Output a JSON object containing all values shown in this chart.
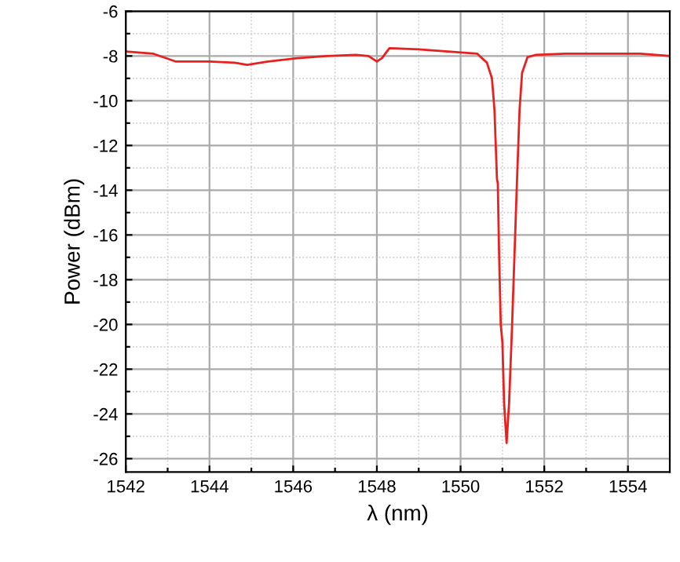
{
  "chart_data": {
    "type": "line",
    "xlabel": "λ (nm)",
    "ylabel": "Power (dBm)",
    "xlim": [
      1542,
      1555
    ],
    "ylim": [
      -26.6,
      -6
    ],
    "xticks": [
      1542,
      {
        "value": 1543,
        "label": null
      },
      1544,
      {
        "value": 1545,
        "label": null
      },
      1546,
      {
        "value": 1547,
        "label": null
      },
      1548,
      {
        "value": 1549,
        "label": null
      },
      1550,
      {
        "value": 1551,
        "label": null
      },
      1552,
      {
        "value": 1553,
        "label": null
      },
      1554
    ],
    "yticks": [
      -26,
      {
        "value": -25,
        "label": null
      },
      -24,
      {
        "value": -23,
        "label": null
      },
      -22,
      {
        "value": -21,
        "label": null
      },
      -20,
      {
        "value": -19,
        "label": null
      },
      -18,
      {
        "value": -17,
        "label": null
      },
      -16,
      {
        "value": -15,
        "label": null
      },
      -14,
      {
        "value": -13,
        "label": null
      },
      -12,
      {
        "value": -11,
        "label": null
      },
      -10,
      {
        "value": -9,
        "label": null
      },
      -8,
      {
        "value": -7,
        "label": null
      },
      -6
    ],
    "grid": true,
    "marker": "none",
    "line_style": "solid",
    "series": [
      {
        "color": "#e8201e",
        "x": [
          1542,
          1542.66,
          1543.2,
          1544,
          1544.6,
          1544.9,
          1545.4,
          1546.1,
          1546.8,
          1547.5,
          1547.8,
          1548,
          1548.12,
          1548.3,
          1549,
          1549.7,
          1550.4,
          1550.63,
          1550.75,
          1550.81,
          1550.87,
          1550.89,
          1550.92,
          1550.96,
          1551.0,
          1551.04,
          1551.1,
          1551.16,
          1551.23,
          1551.29,
          1551.35,
          1551.41,
          1551.47,
          1551.6,
          1551.8,
          1552.5,
          1553.5,
          1554.3,
          1555
        ],
        "values": [
          -7.8,
          -7.9,
          -8.25,
          -8.25,
          -8.3,
          -8.4,
          -8.25,
          -8.1,
          -8.0,
          -7.95,
          -8.0,
          -8.25,
          -8.1,
          -7.65,
          -7.7,
          -7.8,
          -7.9,
          -8.3,
          -9.0,
          -10.4,
          -13.5,
          -13.7,
          -16.8,
          -20.0,
          -20.8,
          -23.5,
          -25.3,
          -23.5,
          -20.1,
          -16.8,
          -13.5,
          -10.4,
          -8.75,
          -8.05,
          -7.95,
          -7.9,
          -7.9,
          -7.9,
          -8.0
        ]
      }
    ]
  }
}
